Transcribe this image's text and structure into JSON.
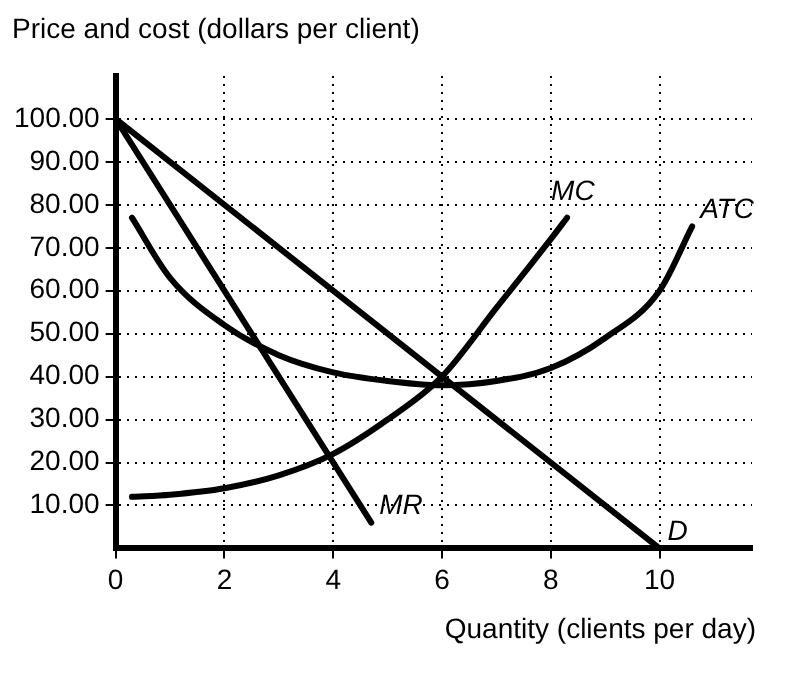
{
  "chart_data": {
    "type": "line",
    "xlabel": "Quantity (clients per day)",
    "ylabel": "Price and cost (dollars per client)",
    "xlim": [
      0,
      11.7
    ],
    "ylim": [
      0,
      110
    ],
    "xticks": [
      0,
      2,
      4,
      6,
      8,
      10
    ],
    "yticks": [
      {
        "value": 10,
        "label": "10.00"
      },
      {
        "value": 20,
        "label": "20.00"
      },
      {
        "value": 30,
        "label": "30.00"
      },
      {
        "value": 40,
        "label": "40.00"
      },
      {
        "value": 50,
        "label": "50.00"
      },
      {
        "value": 60,
        "label": "60.00"
      },
      {
        "value": 70,
        "label": "70.00"
      },
      {
        "value": 80,
        "label": "80.00"
      },
      {
        "value": 90,
        "label": "90.00"
      },
      {
        "value": 100,
        "label": "100.00"
      }
    ],
    "grid": true,
    "legend": false,
    "marker": "none",
    "line_style": "solid",
    "series": [
      {
        "name": "D",
        "color": "#000000",
        "x": [
          0,
          10
        ],
        "values": [
          100,
          0
        ]
      },
      {
        "name": "MR",
        "color": "#000000",
        "x": [
          0,
          4.7
        ],
        "values": [
          100,
          6
        ]
      },
      {
        "name": "MC",
        "color": "#000000",
        "x": [
          0.3,
          1,
          2,
          3,
          4,
          5,
          6,
          7,
          8,
          8.3
        ],
        "values": [
          12,
          12.5,
          14,
          17,
          22,
          30,
          40,
          56,
          72,
          77
        ]
      },
      {
        "name": "ATC",
        "color": "#000000",
        "x": [
          0.3,
          1,
          2,
          3,
          4,
          5,
          6,
          7,
          8,
          9,
          10,
          10.6
        ],
        "values": [
          77,
          63,
          52,
          45,
          41,
          39,
          38,
          39,
          42,
          49,
          60,
          75
        ]
      }
    ]
  }
}
